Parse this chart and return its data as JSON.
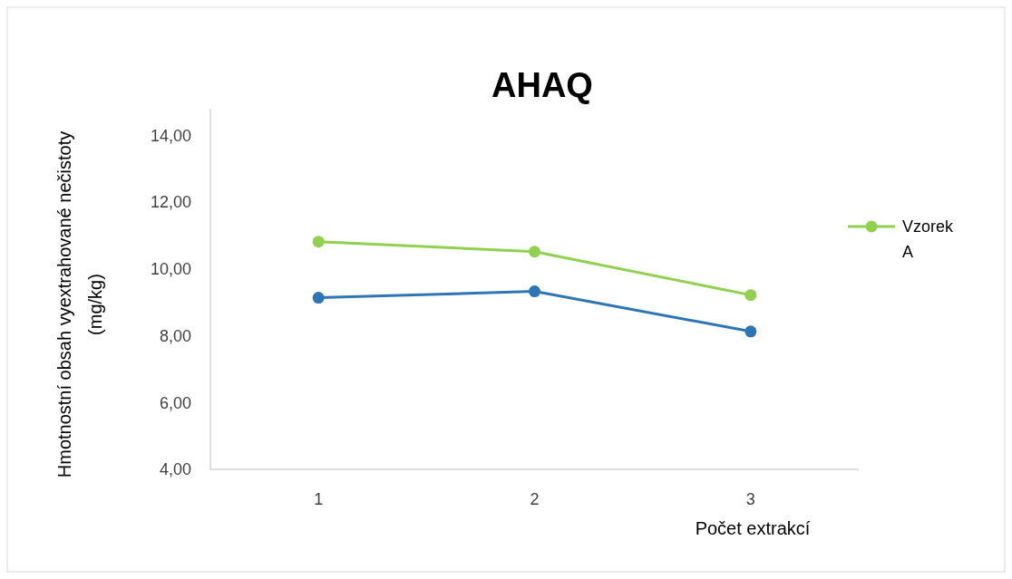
{
  "chart_data": {
    "type": "line",
    "title": "AHAQ",
    "xlabel": "Počet extrakcí",
    "ylabel": "Hmotnostní obsah vyextrahované nečistoty (mg/kg)",
    "categories": [
      "1",
      "2",
      "3"
    ],
    "series": [
      {
        "name": "Vzorek A",
        "color": "#92d050",
        "values": [
          10.82,
          10.52,
          9.22
        ]
      },
      {
        "color": "#2e75b6",
        "values": [
          9.14,
          9.33,
          8.13
        ]
      }
    ],
    "ylim": [
      4,
      14.8
    ],
    "yticks": [
      {
        "value": 4,
        "label": "4,00"
      },
      {
        "value": 6,
        "label": "6,00"
      },
      {
        "value": 8,
        "label": "8,00"
      },
      {
        "value": 10,
        "label": "10,00"
      },
      {
        "value": 12,
        "label": "12,00"
      },
      {
        "value": 14,
        "label": "14,00"
      }
    ],
    "grid": false,
    "legend": "right",
    "marker": "circle",
    "line_style": "solid"
  }
}
